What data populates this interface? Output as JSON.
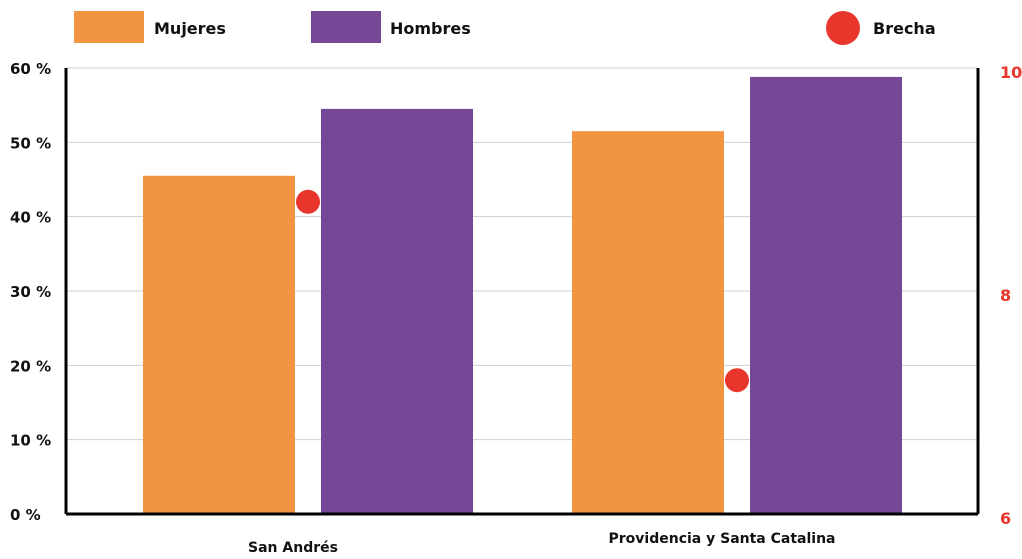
{
  "legend": {
    "items": [
      {
        "label": "Mujeres",
        "color": "#f29540",
        "shape": "rect"
      },
      {
        "label": "Hombres",
        "color": "#744896",
        "shape": "rect"
      },
      {
        "label": "Brecha",
        "color": "#e8362d",
        "shape": "circle"
      }
    ]
  },
  "chart_data": {
    "type": "bar",
    "categories": [
      "San Andrés",
      "Providencia y Santa Catalina"
    ],
    "series": [
      {
        "name": "Mujeres",
        "values": [
          45.5,
          51.5
        ],
        "color": "#f29540",
        "axis": "left"
      },
      {
        "name": "Hombres",
        "values": [
          54.5,
          58.8
        ],
        "color": "#744896",
        "axis": "left"
      },
      {
        "name": "Brecha",
        "values": [
          8.8,
          7.2
        ],
        "color": "#e8362d",
        "axis": "right",
        "mark": "point"
      }
    ],
    "y_left": {
      "ylim": [
        0,
        60
      ],
      "ticks": [
        0,
        10,
        20,
        30,
        40,
        50,
        60
      ],
      "tick_labels": [
        "0 %",
        "10 %",
        "20 %",
        "30 %",
        "40 %",
        "50 %",
        "60 %"
      ]
    },
    "y_right": {
      "ylim": [
        6,
        10
      ],
      "ticks": [
        6,
        8,
        10
      ],
      "tick_labels": [
        "6",
        "8",
        "10"
      ],
      "color": "#e8362d"
    },
    "grid": true,
    "legend_position": "top"
  }
}
